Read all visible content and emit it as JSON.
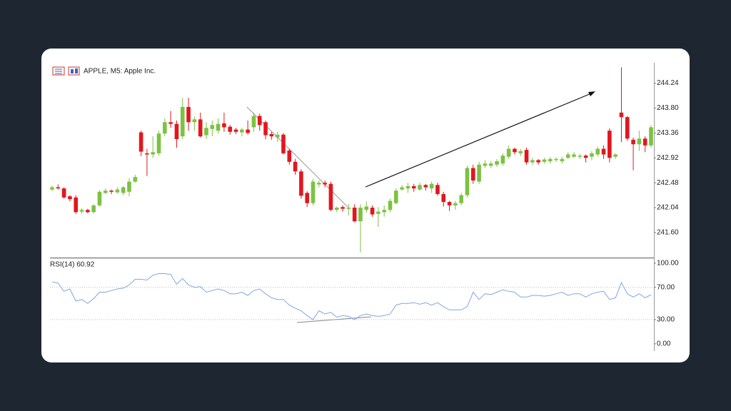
{
  "chart_data": [
    {
      "type": "candlestick",
      "title": "APPLE, M5:  Apple Inc.",
      "up_color": "#7cc242",
      "down_color": "#e3161d",
      "open": [
        242.36,
        242.4,
        242.38,
        242.24,
        242.22,
        241.97,
        242.0,
        241.96,
        242.08,
        242.3,
        242.34,
        242.31,
        242.3,
        242.32,
        242.5,
        243.37,
        243.0,
        242.98,
        243.0,
        243.35,
        243.55,
        243.52,
        243.3,
        243.82,
        243.55,
        243.6,
        243.32,
        243.43,
        243.4,
        243.53,
        243.47,
        243.42,
        243.37,
        243.42,
        243.46,
        243.66,
        243.55,
        243.34,
        243.28,
        243.33,
        243.05,
        242.85,
        242.68,
        242.3,
        242.12,
        242.45,
        242.48,
        242.46,
        242.0,
        242.05,
        242.02,
        242.04,
        241.8,
        242.0,
        242.04,
        241.93,
        241.96,
        242.0,
        242.12,
        242.36,
        242.38,
        242.42,
        242.36,
        242.44,
        242.38,
        242.44,
        242.28,
        242.14,
        242.08,
        242.12,
        242.26,
        242.74,
        242.5,
        242.78,
        242.78,
        242.8,
        242.82,
        242.94,
        243.08,
        243.0,
        243.06,
        242.84,
        242.88,
        242.85,
        242.86,
        242.88,
        242.86,
        242.92,
        242.94,
        242.94,
        242.96,
        242.94,
        242.98,
        243.08,
        243.4,
        242.94,
        243.72,
        243.64,
        243.24,
        243.16,
        243.26,
        243.14
      ],
      "high": [
        242.43,
        242.45,
        242.4,
        242.26,
        242.26,
        242.03,
        242.02,
        242.1,
        242.35,
        242.38,
        242.36,
        242.4,
        242.42,
        242.56,
        242.62,
        243.4,
        243.08,
        243.3,
        243.4,
        243.62,
        243.75,
        243.58,
        243.98,
        243.98,
        243.65,
        243.72,
        243.55,
        243.58,
        243.62,
        243.72,
        243.5,
        243.45,
        243.45,
        243.58,
        243.72,
        243.7,
        243.58,
        243.38,
        243.38,
        243.36,
        243.08,
        242.9,
        242.72,
        242.33,
        242.55,
        242.52,
        242.52,
        242.5,
        242.06,
        242.08,
        242.1,
        242.1,
        242.1,
        242.15,
        242.08,
        242.05,
        242.08,
        242.2,
        242.38,
        242.44,
        242.48,
        242.46,
        242.48,
        242.46,
        242.5,
        242.48,
        242.32,
        242.16,
        242.16,
        242.3,
        242.78,
        242.8,
        242.85,
        242.88,
        242.86,
        242.9,
        243.0,
        243.14,
        243.1,
        243.08,
        243.1,
        242.92,
        242.9,
        242.92,
        242.94,
        242.93,
        242.94,
        243.02,
        243.02,
        242.99,
        242.98,
        243.04,
        243.12,
        243.14,
        243.44,
        243.0,
        244.52,
        243.66,
        243.28,
        243.4,
        243.3,
        243.5
      ],
      "low": [
        242.33,
        242.36,
        242.2,
        242.15,
        241.93,
        241.93,
        241.94,
        241.94,
        242.06,
        242.28,
        242.28,
        242.29,
        242.26,
        242.24,
        242.48,
        242.95,
        242.6,
        242.92,
        242.96,
        243.3,
        243.45,
        243.1,
        243.25,
        243.4,
        243.4,
        243.28,
        243.25,
        243.3,
        243.35,
        243.38,
        243.33,
        243.34,
        243.3,
        243.33,
        243.38,
        243.4,
        243.25,
        243.24,
        243.2,
        242.98,
        242.8,
        242.62,
        242.2,
        242.05,
        242.08,
        242.4,
        242.4,
        241.98,
        241.96,
        241.97,
        241.9,
        241.78,
        241.25,
        241.95,
        241.88,
        241.7,
        241.88,
        241.96,
        242.1,
        242.34,
        242.3,
        242.32,
        242.34,
        242.34,
        242.3,
        242.25,
        242.06,
        241.98,
        242.0,
        242.08,
        242.22,
        242.46,
        242.46,
        242.74,
        242.74,
        242.76,
        242.78,
        242.9,
        242.98,
        242.95,
        242.8,
        242.8,
        242.8,
        242.82,
        242.82,
        242.85,
        242.82,
        242.9,
        242.92,
        242.9,
        242.84,
        242.88,
        242.94,
        242.9,
        242.84,
        242.9,
        243.2,
        243.22,
        242.7,
        243.04,
        243.02,
        243.1
      ],
      "close": [
        242.4,
        242.38,
        242.22,
        242.19,
        241.96,
        242.0,
        241.96,
        242.08,
        242.32,
        242.34,
        242.32,
        242.36,
        242.4,
        242.5,
        242.58,
        243.03,
        242.98,
        243.02,
        243.35,
        243.55,
        243.52,
        243.25,
        243.82,
        243.55,
        243.6,
        243.3,
        243.45,
        243.5,
        243.52,
        243.46,
        243.38,
        243.38,
        243.42,
        243.36,
        243.66,
        243.5,
        243.32,
        243.3,
        243.33,
        243.0,
        242.85,
        242.68,
        242.25,
        242.12,
        242.5,
        242.48,
        242.45,
        242.0,
        242.04,
        242.02,
        242.04,
        241.8,
        242.04,
        242.06,
        241.92,
        241.97,
        242.0,
        242.16,
        242.34,
        242.4,
        242.42,
        242.38,
        242.44,
        242.4,
        242.46,
        242.28,
        242.14,
        242.08,
        242.12,
        242.26,
        242.74,
        242.52,
        242.8,
        242.82,
        242.82,
        242.86,
        242.96,
        243.08,
        243.02,
        243.04,
        242.84,
        242.88,
        242.84,
        242.89,
        242.9,
        242.9,
        242.9,
        242.98,
        242.98,
        242.96,
        242.92,
        243.0,
        243.08,
        242.98,
        242.92,
        242.98,
        243.64,
        243.26,
        243.16,
        243.26,
        243.14,
        243.46
      ],
      "ylim": [
        241.17,
        244.6
      ],
      "yticks": [
        244.24,
        {
          "value": 243.8,
          "label": "243.80"
        },
        243.36,
        242.92,
        242.48,
        242.04,
        {
          "value": 241.6,
          "label": "241.60"
        }
      ],
      "grid": false
    },
    {
      "type": "line",
      "title": "RSI(14) 60.92",
      "color": "#7ea7e2",
      "values": [
        77,
        75,
        65,
        68,
        53,
        55,
        50,
        56,
        64,
        64,
        66,
        68,
        69,
        73,
        80,
        80,
        79,
        85,
        87,
        87,
        86,
        74,
        81,
        73,
        70,
        71,
        64,
        66,
        68,
        66,
        62,
        62,
        64,
        60,
        66,
        68,
        62,
        57,
        55,
        55,
        48,
        44,
        41,
        35,
        30,
        41,
        37,
        39,
        33,
        35,
        34,
        30,
        35,
        37,
        35,
        34,
        35,
        37,
        48,
        50,
        50,
        51,
        49,
        51,
        48,
        51,
        46,
        42,
        42,
        42,
        46,
        64,
        55,
        62,
        61,
        64,
        67,
        65,
        64,
        58,
        58,
        60,
        60,
        59,
        60,
        62,
        64,
        60,
        62,
        62,
        58,
        62,
        64,
        65,
        55,
        57,
        76,
        62,
        58,
        62,
        57,
        60.92
      ],
      "ylim": [
        -9,
        106
      ],
      "yticks": [
        {
          "value": 100,
          "label": "100.00"
        },
        {
          "value": 70,
          "label": "70.00"
        },
        {
          "value": 30,
          "label": "30.00"
        },
        {
          "value": 0,
          "label": "0.00"
        }
      ],
      "levels": [
        70,
        30
      ],
      "grid": false
    }
  ]
}
